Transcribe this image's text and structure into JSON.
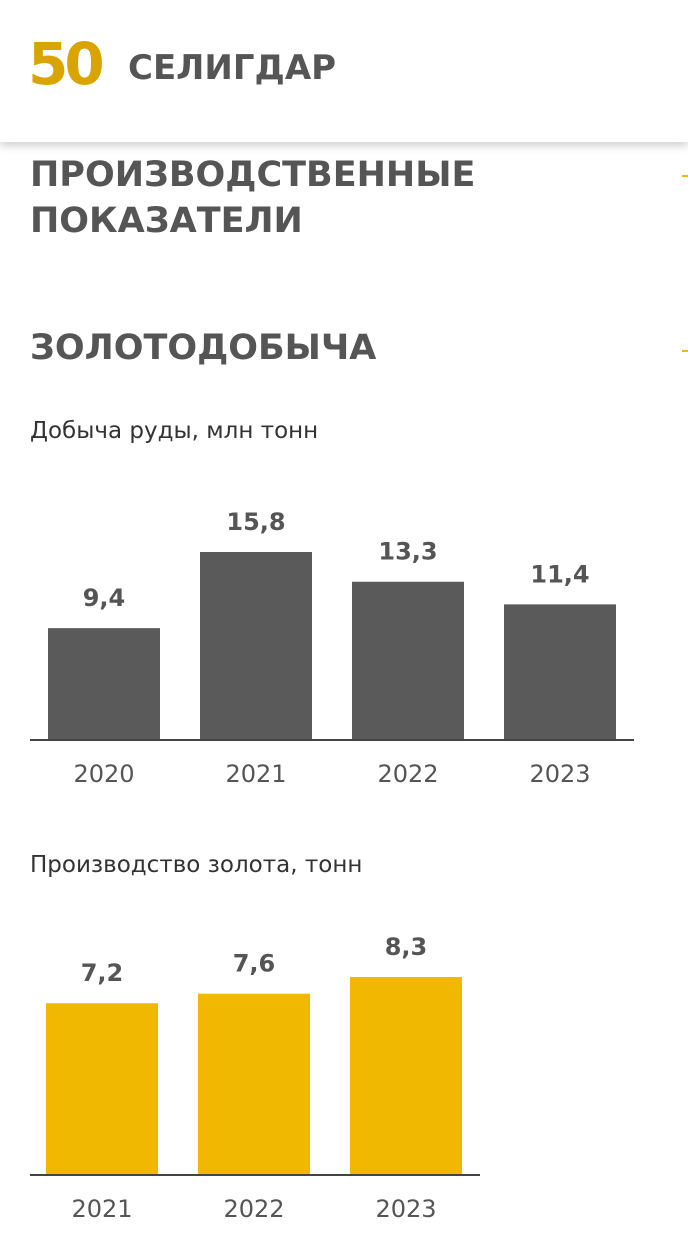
{
  "header": {
    "logo_number": "50",
    "brand": "СЕЛИГДАР"
  },
  "page": {
    "title": "ПРОИЗВОДСТВЕННЫЕ ПОКАЗАТЕЛИ",
    "section": "ЗОЛОТОДОБЫЧА"
  },
  "chart_data": [
    {
      "type": "bar",
      "title": "Добыча руды, млн тонн",
      "categories": [
        "2020",
        "2021",
        "2022",
        "2023"
      ],
      "values": [
        9.4,
        15.8,
        13.3,
        11.4
      ],
      "value_labels": [
        "9,4",
        "15,8",
        "13,3",
        "11,4"
      ],
      "color": "#5b5a5b"
    },
    {
      "type": "bar",
      "title": "Производство золота, тонн",
      "categories": [
        "2021",
        "2022",
        "2023"
      ],
      "values": [
        7.2,
        7.6,
        8.3
      ],
      "value_labels": [
        "7,2",
        "7,6",
        "8,3"
      ],
      "color": "#f0b800"
    }
  ]
}
